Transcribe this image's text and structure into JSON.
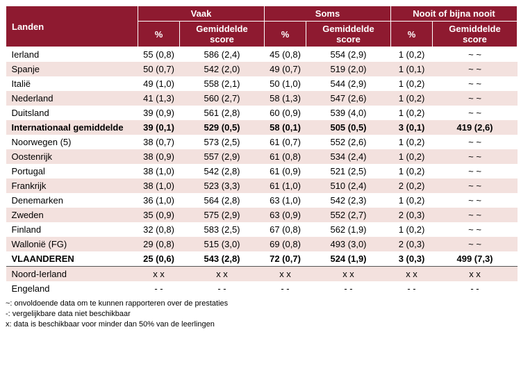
{
  "header": {
    "corner": "Landen",
    "groups": [
      "Vaak",
      "Soms",
      "Nooit of bijna nooit"
    ],
    "sub_pct": "%",
    "sub_score": "Gemiddelde score"
  },
  "colors": {
    "header_bg": "#8e1a30",
    "header_fg": "#ffffff",
    "stripe_bg": "#f3e1de",
    "body_bg": "#ffffff",
    "rule": "#555555",
    "text": "#000000"
  },
  "fonts": {
    "body_size_pt": 10,
    "notes_size_pt": 8
  },
  "rows": [
    {
      "country": "Ierland",
      "stripe": false,
      "bold": false,
      "vals": [
        "55 (0,8)",
        "586 (2,4)",
        "45 (0,8)",
        "554 (2,9)",
        "1 (0,2)",
        "~ ~"
      ]
    },
    {
      "country": "Spanje",
      "stripe": true,
      "bold": false,
      "vals": [
        "50 (0,7)",
        "542 (2,0)",
        "49 (0,7)",
        "519 (2,0)",
        "1 (0,1)",
        "~ ~"
      ]
    },
    {
      "country": "Italië",
      "stripe": false,
      "bold": false,
      "vals": [
        "49 (1,0)",
        "558 (2,1)",
        "50 (1,0)",
        "544 (2,9)",
        "1 (0,2)",
        "~ ~"
      ]
    },
    {
      "country": "Nederland",
      "stripe": true,
      "bold": false,
      "vals": [
        "41 (1,3)",
        "560 (2,7)",
        "58 (1,3)",
        "547 (2,6)",
        "1 (0,2)",
        "~ ~"
      ]
    },
    {
      "country": "Duitsland",
      "stripe": false,
      "bold": false,
      "vals": [
        "39 (0,9)",
        "561 (2,8)",
        "60 (0,9)",
        "539 (4,0)",
        "1 (0,2)",
        "~ ~"
      ]
    },
    {
      "country": "Internationaal gemiddelde",
      "stripe": true,
      "bold": true,
      "vals": [
        "39 (0,1)",
        "529 (0,5)",
        "58 (0,1)",
        "505 (0,5)",
        "3 (0,1)",
        "419 (2,6)"
      ]
    },
    {
      "country": "Noorwegen (5)",
      "stripe": false,
      "bold": false,
      "vals": [
        "38 (0,7)",
        "573 (2,5)",
        "61 (0,7)",
        "552 (2,6)",
        "1 (0,2)",
        "~ ~"
      ]
    },
    {
      "country": "Oostenrijk",
      "stripe": true,
      "bold": false,
      "vals": [
        "38 (0,9)",
        "557 (2,9)",
        "61 (0,8)",
        "534 (2,4)",
        "1 (0,2)",
        "~ ~"
      ]
    },
    {
      "country": "Portugal",
      "stripe": false,
      "bold": false,
      "vals": [
        "38 (1,0)",
        "542 (2,8)",
        "61 (0,9)",
        "521 (2,5)",
        "1 (0,2)",
        "~ ~"
      ]
    },
    {
      "country": "Frankrijk",
      "stripe": true,
      "bold": false,
      "vals": [
        "38 (1,0)",
        "523 (3,3)",
        "61 (1,0)",
        "510 (2,4)",
        "2 (0,2)",
        "~ ~"
      ]
    },
    {
      "country": "Denemarken",
      "stripe": false,
      "bold": false,
      "vals": [
        "36 (1,0)",
        "564 (2,8)",
        "63 (1,0)",
        "542 (2,3)",
        "1 (0,2)",
        "~ ~"
      ]
    },
    {
      "country": "Zweden",
      "stripe": true,
      "bold": false,
      "vals": [
        "35 (0,9)",
        "575 (2,9)",
        "63 (0,9)",
        "552 (2,7)",
        "2 (0,3)",
        "~ ~"
      ]
    },
    {
      "country": "Finland",
      "stripe": false,
      "bold": false,
      "vals": [
        "32 (0,8)",
        "583 (2,5)",
        "67 (0,8)",
        "562 (1,9)",
        "1 (0,2)",
        "~ ~"
      ]
    },
    {
      "country": "Wallonië (FG)",
      "stripe": true,
      "bold": false,
      "vals": [
        "29 (0,8)",
        "515 (3,0)",
        "69 (0,8)",
        "493 (3,0)",
        "2 (0,3)",
        "~ ~"
      ]
    },
    {
      "country": "VLAANDEREN",
      "stripe": false,
      "bold": true,
      "vals": [
        "25 (0,6)",
        "543 (2,8)",
        "72 (0,7)",
        "524 (1,9)",
        "3 (0,3)",
        "499 (7,3)"
      ]
    },
    {
      "country": "Noord-Ierland",
      "stripe": true,
      "bold": false,
      "sep": true,
      "vals": [
        "x x",
        "x x",
        "x x",
        "x x",
        "x x",
        "x x"
      ]
    },
    {
      "country": "Engeland",
      "stripe": false,
      "bold": false,
      "vals": [
        "- -",
        "- -",
        "- -",
        "- -",
        "- -",
        "- -"
      ]
    }
  ],
  "notes": [
    "~: onvoldoende data om te kunnen rapporteren over de prestaties",
    "-: vergelijkbare data niet beschikbaar",
    "x: data is beschikbaar voor minder dan 50% van de leerlingen"
  ]
}
